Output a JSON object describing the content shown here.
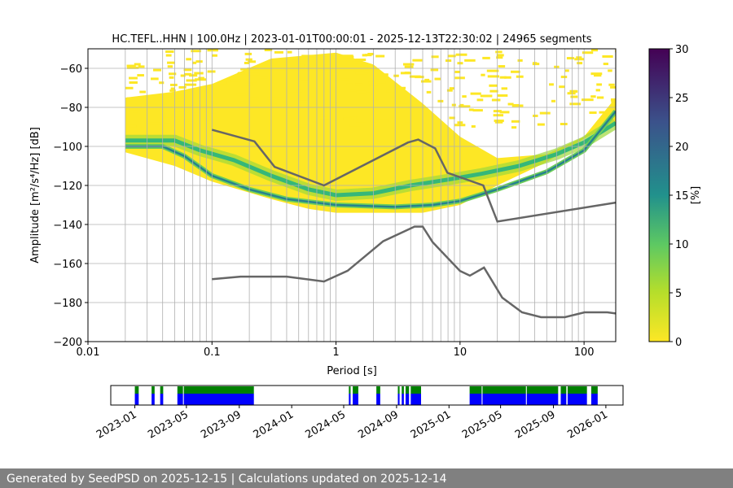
{
  "footer": "Generated by SeedPSD on 2025-12-15 | Calculations updated on 2025-12-14",
  "chart_data": [
    {
      "type": "heatmap",
      "title": "HC.TEFL..HHN | 100.0Hz | 2023-01-01T00:00:01 - 2025-12-13T22:30:02 | 24965 segments",
      "xlabel": "Period [s]",
      "ylabel": "Amplitude [m²/s⁴/Hz] [dB]",
      "xscale": "log",
      "xlim": [
        0.01,
        180
      ],
      "ylim": [
        -200,
        -50
      ],
      "xticks": [
        {
          "v": 0.01,
          "label": "0.01"
        },
        {
          "v": 0.1,
          "label": "0.1"
        },
        {
          "v": 1,
          "label": "1"
        },
        {
          "v": 10,
          "label": "10"
        },
        {
          "v": 100,
          "label": "100"
        }
      ],
      "yticks": [
        -60,
        -80,
        -100,
        -120,
        -140,
        -160,
        -180,
        -200
      ],
      "grid": true,
      "colorbar": {
        "label": "[%]",
        "range": [
          0,
          30
        ],
        "ticks": [
          0,
          5,
          10,
          15,
          20,
          25,
          30
        ],
        "colormap": [
          "#fde725",
          "#5ec962",
          "#21918c",
          "#3b528b",
          "#440154"
        ]
      },
      "coverage_upper": [
        [
          0.02,
          -75
        ],
        [
          0.05,
          -72
        ],
        [
          0.1,
          -68
        ],
        [
          0.3,
          -55
        ],
        [
          1,
          -52
        ],
        [
          2,
          -58
        ],
        [
          5,
          -78
        ],
        [
          10,
          -95
        ],
        [
          20,
          -106
        ],
        [
          50,
          -104
        ],
        [
          100,
          -95
        ],
        [
          180,
          -75
        ]
      ],
      "coverage_lower": [
        [
          0.02,
          -103
        ],
        [
          0.05,
          -110
        ],
        [
          0.1,
          -118
        ],
        [
          0.3,
          -127
        ],
        [
          0.6,
          -132
        ],
        [
          1,
          -134
        ],
        [
          5,
          -134
        ],
        [
          10,
          -130
        ],
        [
          20,
          -120
        ],
        [
          50,
          -108
        ],
        [
          100,
          -96
        ],
        [
          180,
          -88
        ]
      ],
      "mode_primary": [
        [
          0.02,
          -97
        ],
        [
          0.05,
          -97
        ],
        [
          0.08,
          -102
        ],
        [
          0.15,
          -107
        ],
        [
          0.3,
          -115
        ],
        [
          0.6,
          -122
        ],
        [
          1,
          -125
        ],
        [
          2,
          -124
        ],
        [
          4,
          -120
        ],
        [
          8,
          -117
        ],
        [
          15,
          -114
        ],
        [
          30,
          -110
        ],
        [
          60,
          -104
        ],
        [
          100,
          -98
        ],
        [
          180,
          -88
        ]
      ],
      "mode_secondary": [
        [
          0.02,
          -100
        ],
        [
          0.04,
          -100
        ],
        [
          0.06,
          -105
        ],
        [
          0.1,
          -115
        ],
        [
          0.2,
          -122
        ],
        [
          0.4,
          -127
        ],
        [
          1,
          -130
        ],
        [
          3,
          -131
        ],
        [
          6,
          -130
        ],
        [
          10,
          -128
        ],
        [
          20,
          -122
        ],
        [
          50,
          -113
        ],
        [
          100,
          -102
        ],
        [
          180,
          -82
        ]
      ],
      "nhnm": [
        [
          0.1,
          -91.5
        ],
        [
          0.22,
          -97.4
        ],
        [
          0.32,
          -110.5
        ],
        [
          0.8,
          -120
        ],
        [
          3.8,
          -98
        ],
        [
          4.6,
          -96.5
        ],
        [
          6.3,
          -101
        ],
        [
          7.9,
          -113.5
        ],
        [
          15.4,
          -120
        ],
        [
          20,
          -138.5
        ],
        [
          180,
          -128.8
        ]
      ],
      "nlnm": [
        [
          0.1,
          -168
        ],
        [
          0.17,
          -166.7
        ],
        [
          0.4,
          -166.7
        ],
        [
          0.8,
          -169.2
        ],
        [
          1.24,
          -163.7
        ],
        [
          2.4,
          -148.6
        ],
        [
          4.3,
          -141.1
        ],
        [
          5,
          -141.1
        ],
        [
          6,
          -149
        ],
        [
          10,
          -163.8
        ],
        [
          12,
          -166.2
        ],
        [
          15.6,
          -162.1
        ],
        [
          21.9,
          -177.5
        ],
        [
          31.6,
          -185
        ],
        [
          45,
          -187.5
        ],
        [
          70,
          -187.5
        ],
        [
          101,
          -185
        ],
        [
          154,
          -185
        ],
        [
          180,
          -185.6
        ]
      ],
      "colors": {
        "noise_model": "#666666",
        "grid": "#b0b0b0"
      }
    },
    {
      "type": "timeline",
      "xlim": [
        "2022-11-06",
        "2026-02-10"
      ],
      "xticks": [
        "2023-01",
        "2023-05",
        "2023-09",
        "2024-01",
        "2024-05",
        "2024-09",
        "2025-01",
        "2025-05",
        "2025-09",
        "2026-01"
      ],
      "segments": [
        [
          "2023-01-01",
          "2023-01-10"
        ],
        [
          "2023-02-09",
          "2023-02-16"
        ],
        [
          "2023-03-01",
          "2023-03-08"
        ],
        [
          "2023-04-10",
          "2023-04-23"
        ],
        [
          "2023-04-25",
          "2023-10-05"
        ],
        [
          "2024-05-13",
          "2024-05-17"
        ],
        [
          "2024-05-22",
          "2024-06-04"
        ],
        [
          "2024-07-16",
          "2024-07-25"
        ],
        [
          "2024-09-04",
          "2024-09-08"
        ],
        [
          "2024-09-13",
          "2024-09-18"
        ],
        [
          "2024-09-22",
          "2024-09-30"
        ],
        [
          "2024-10-04",
          "2024-10-28"
        ],
        [
          "2025-02-18",
          "2025-03-18"
        ],
        [
          "2025-03-20",
          "2025-06-29"
        ],
        [
          "2025-07-01",
          "2025-09-12"
        ],
        [
          "2025-09-18",
          "2025-10-01"
        ],
        [
          "2025-10-04",
          "2025-11-18"
        ],
        [
          "2025-11-28",
          "2025-12-13"
        ]
      ],
      "colors": {
        "processed": "#008000",
        "available": "#0000ff"
      }
    }
  ]
}
